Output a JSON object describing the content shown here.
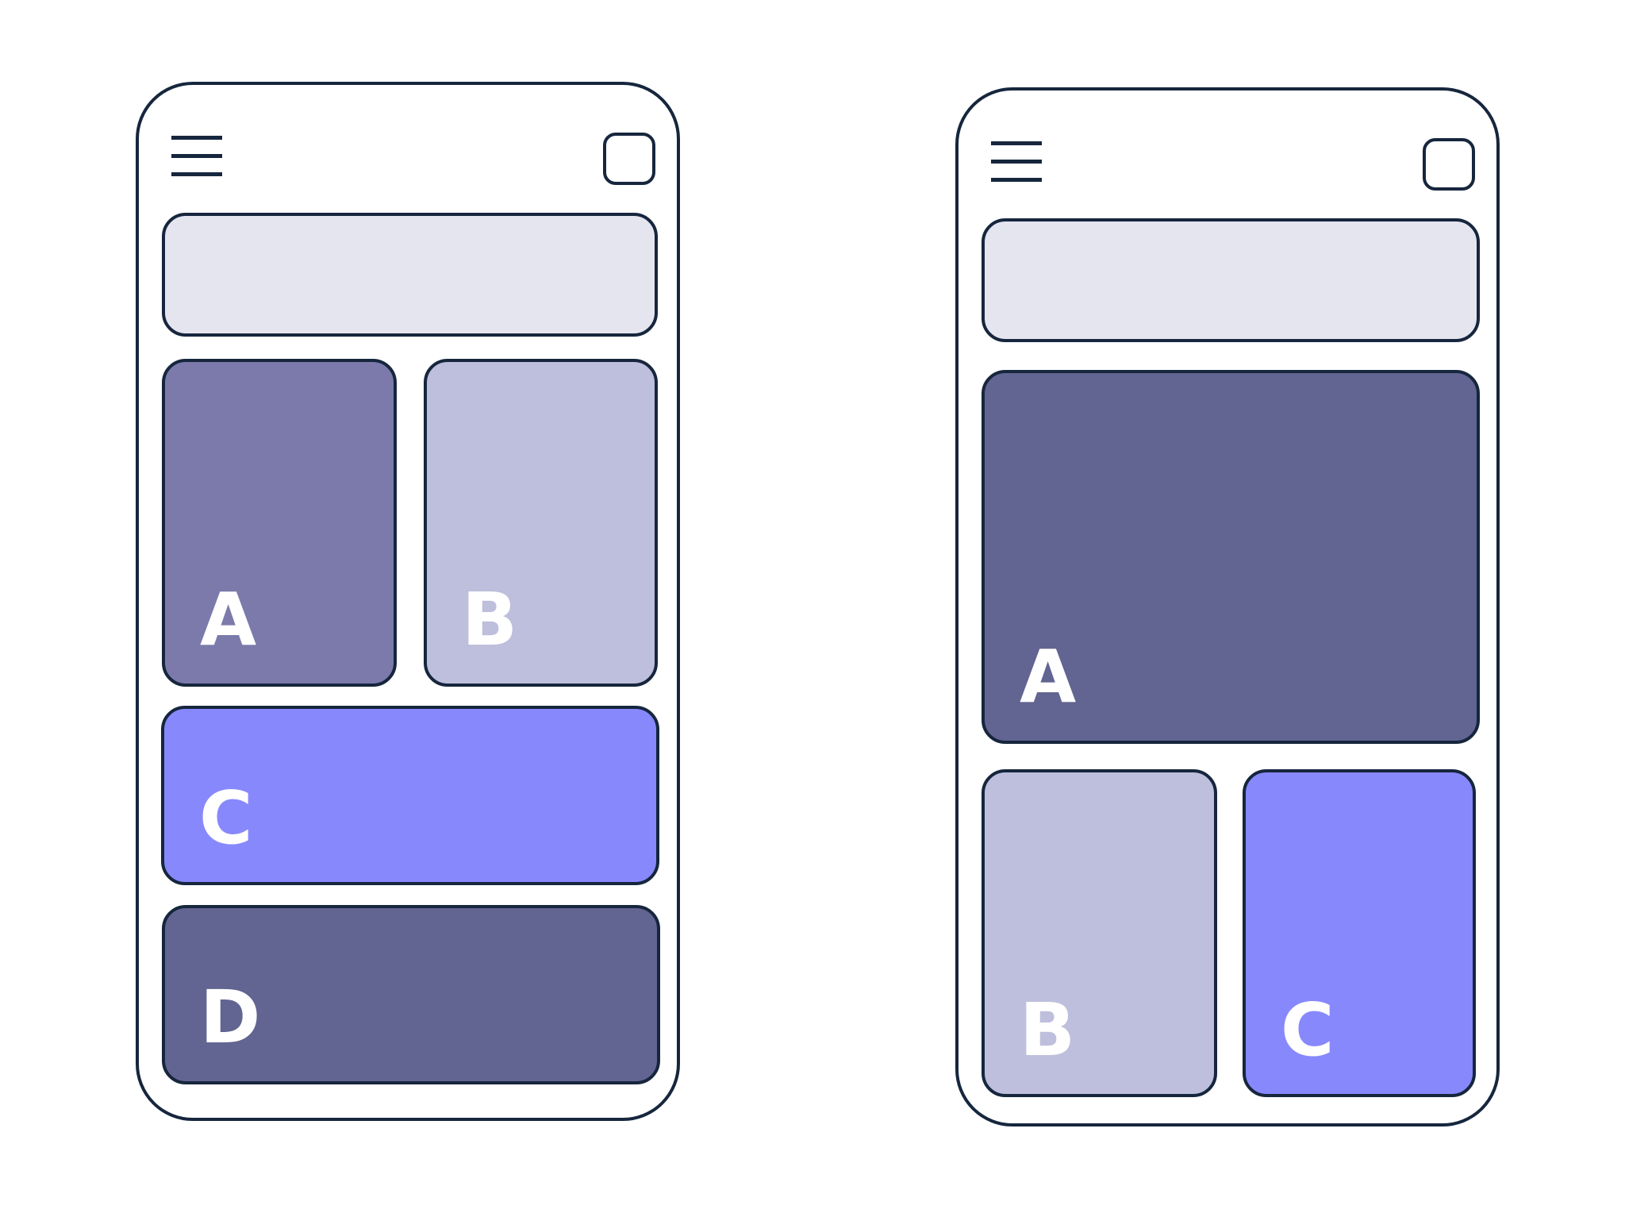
{
  "colors": {
    "outline": "#16263d",
    "banner": "#e5e5f0",
    "tile_a_left": "#7b7aab",
    "tile_b": "#bebfdc",
    "tile_c": "#8888fd",
    "tile_d": "#626491",
    "tile_a_right": "#626491",
    "label": "#ffffff"
  },
  "icons": {
    "menu": "hamburger-menu-icon",
    "action": "square-button-icon"
  },
  "left_layout": {
    "tiles": [
      {
        "id": "a",
        "label": "A"
      },
      {
        "id": "b",
        "label": "B"
      },
      {
        "id": "c",
        "label": "C"
      },
      {
        "id": "d",
        "label": "D"
      }
    ]
  },
  "right_layout": {
    "tiles": [
      {
        "id": "a",
        "label": "A"
      },
      {
        "id": "b",
        "label": "B"
      },
      {
        "id": "c",
        "label": "C"
      }
    ]
  }
}
